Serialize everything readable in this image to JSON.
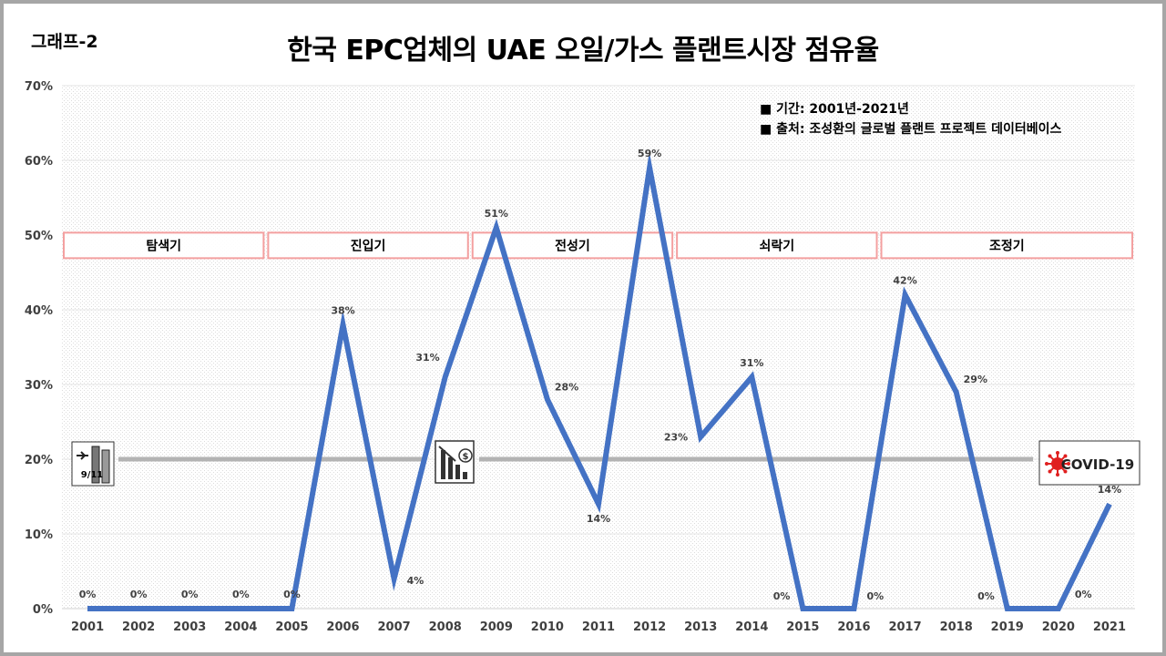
{
  "graph_tag": "그래프-2",
  "title": "한국 EPC업체의 UAE 오일/가스 플랜트시장 점유율",
  "notes": [
    "■ 기간: 2001년-2021년",
    "■ 출처: 조성환의 글로벌 플랜트 프로젝트 데이터베이스"
  ],
  "colors": {
    "line": "#4472c4",
    "phase_border": "#f4a0a0",
    "reference_line": "#b3b3b3",
    "covid_red": "#e02020"
  },
  "chart_data": {
    "type": "line",
    "title": "한국 EPC업체의 UAE 오일/가스 플랜트시장 점유율",
    "categories": [
      "2001",
      "2002",
      "2003",
      "2004",
      "2005",
      "2006",
      "2007",
      "2008",
      "2009",
      "2010",
      "2011",
      "2012",
      "2013",
      "2014",
      "2015",
      "2016",
      "2017",
      "2018",
      "2019",
      "2020",
      "2021"
    ],
    "values": [
      0,
      0,
      0,
      0,
      0,
      38,
      4,
      31,
      51,
      28,
      14,
      59,
      23,
      31,
      0,
      0,
      42,
      29,
      0,
      0,
      14
    ],
    "data_labels": [
      "0%",
      "0%",
      "0%",
      "0%",
      "0%",
      "38%",
      "4%",
      "31%",
      "51%",
      "28%",
      "14%",
      "59%",
      "23%",
      "31%",
      "0%",
      "0%",
      "42%",
      "29%",
      "0%",
      "0%",
      "14%"
    ],
    "ylim": [
      0,
      70
    ],
    "yticks": [
      0,
      10,
      20,
      30,
      40,
      50,
      60,
      70
    ],
    "ytick_labels": [
      "0%",
      "10%",
      "20%",
      "30%",
      "40%",
      "50%",
      "60%",
      "70%"
    ],
    "grid": true,
    "reference_line_value": 20,
    "phases": [
      {
        "label": "탐색기",
        "from": "2001",
        "to": "2004"
      },
      {
        "label": "진입기",
        "from": "2005",
        "to": "2008"
      },
      {
        "label": "전성기",
        "from": "2009",
        "to": "2012"
      },
      {
        "label": "쇠락기",
        "from": "2013",
        "to": "2016"
      },
      {
        "label": "조정기",
        "from": "2017",
        "to": "2021"
      }
    ],
    "event_markers": [
      {
        "name": "911-icon",
        "text": "9/11",
        "icon": "plane-towers"
      },
      {
        "name": "financial-crisis-icon",
        "text": "$",
        "icon": "falling-bars"
      },
      {
        "name": "covid-icon",
        "text": "COVID-19",
        "icon": "virus"
      }
    ]
  }
}
